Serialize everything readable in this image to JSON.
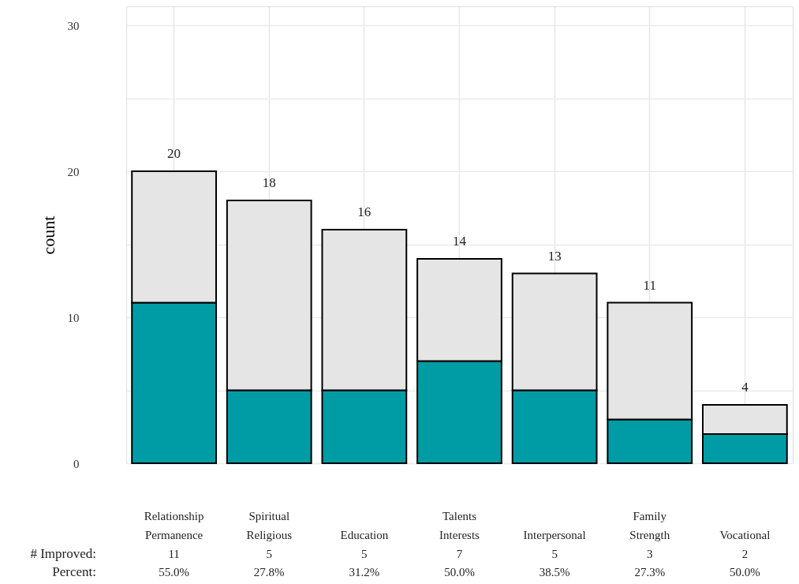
{
  "chart_data": {
    "type": "bar",
    "ylabel": "count",
    "categories": [
      "Relationship Permanence",
      "Spiritual Religious",
      "Education",
      "Talents Interests",
      "Interpersonal",
      "Family Strength",
      "Vocational"
    ],
    "series": [
      {
        "color": "#009ca6",
        "values": [
          11,
          5,
          5,
          7,
          5,
          3,
          2
        ],
        "value_labels": [
          "11",
          "5",
          "5",
          "7",
          "5",
          "3",
          "2"
        ]
      },
      {
        "color": "#e5e5e5",
        "values": [
          9,
          13,
          11,
          7,
          8,
          8,
          2
        ]
      }
    ],
    "stacked": true,
    "totals": [
      "20",
      "18",
      "16",
      "14",
      "13",
      "11",
      "4"
    ],
    "ylim": [
      0,
      31.3
    ],
    "yticks": [
      0,
      {
        "value": 5,
        "label": null
      },
      10,
      {
        "value": 15,
        "label": null
      },
      20,
      {
        "value": 25,
        "label": null
      },
      30
    ],
    "grid": true,
    "annotations": [
      "# Improved:",
      "Percent:",
      "55.0%",
      "27.8%",
      "31.2%",
      "50.0%",
      "38.5%",
      "27.3%",
      "50.0%"
    ]
  }
}
